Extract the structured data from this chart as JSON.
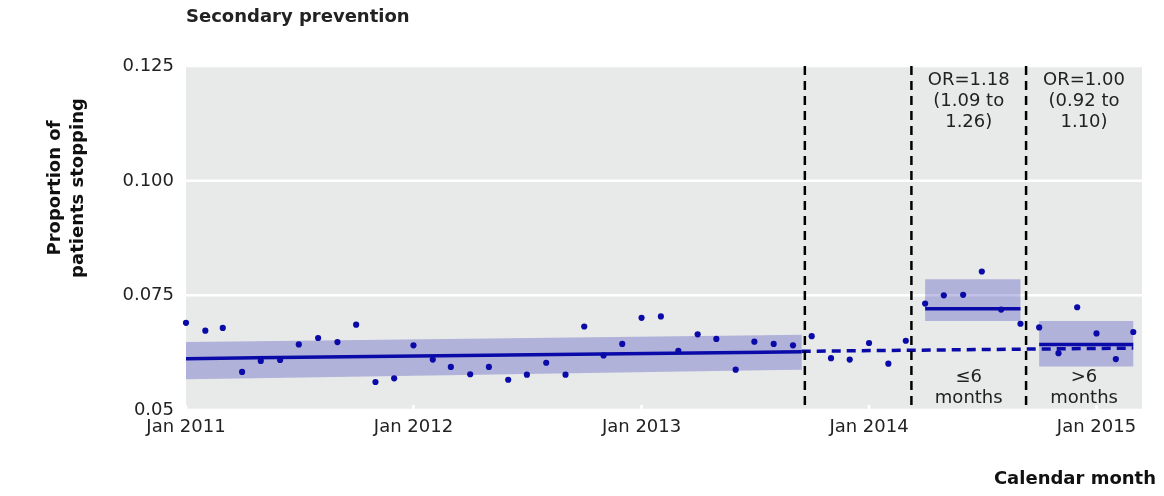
{
  "chart_data": {
    "type": "scatter",
    "title": "Secondary prevention",
    "xlabel": "Calendar month",
    "ylabel": "Proportion of patients stopping",
    "xlim": [
      "2011-01-01",
      "2015-03-15"
    ],
    "xticks": [
      {
        "value": "2011-01",
        "label": "Jan 2011"
      },
      {
        "value": "2012-01",
        "label": "Jan 2012"
      },
      {
        "value": "2013-01",
        "label": "Jan 2013"
      },
      {
        "value": "2014-01",
        "label": "Jan 2014"
      },
      {
        "value": "2015-01",
        "label": "Jan 2015"
      }
    ],
    "ylim": [
      0.05,
      0.125
    ],
    "yticks": [
      0.05,
      0.075,
      {
        "value": 0.1,
        "label": "0.100"
      },
      0.125
    ],
    "grid": "y",
    "series": [
      {
        "type": "line",
        "color": "#0a0aa8",
        "x": [
          "2011-01",
          "2013-09-15"
        ],
        "values": [
          0.0612,
          0.0627
        ],
        "lower": [
          0.0567,
          0.0588
        ],
        "upper": [
          0.0648,
          0.0664
        ],
        "line_style": "solid"
      },
      {
        "type": "line",
        "color": "#0a0aa8",
        "x": [
          "2013-09-15",
          "2015-03"
        ],
        "values": [
          0.0628,
          0.0635
        ],
        "line_style": "dashed"
      },
      {
        "type": "line",
        "color": "#0a0aa8",
        "x": [
          "2014-04",
          "2014-09"
        ],
        "values": [
          0.0721,
          0.0721
        ],
        "lower": [
          0.0694,
          0.0694
        ],
        "upper": [
          0.0785,
          0.0785
        ],
        "line_style": "solid"
      },
      {
        "type": "line",
        "color": "#0a0aa8",
        "x": [
          "2014-10",
          "2015-03"
        ],
        "values": [
          0.0643,
          0.0643
        ],
        "lower": [
          0.0595,
          0.0595
        ],
        "upper": [
          0.0694,
          0.0694
        ],
        "line_style": "solid"
      },
      {
        "marker": "circle",
        "color": "#0a0aa8",
        "x": [
          "2011-01",
          "2011-02",
          "2011-03",
          "2011-04",
          "2011-05",
          "2011-06",
          "2011-07",
          "2011-08",
          "2011-09",
          "2011-10",
          "2011-11",
          "2011-12",
          "2012-01",
          "2012-02",
          "2012-03",
          "2012-04",
          "2012-05",
          "2012-06",
          "2012-07",
          "2012-08",
          "2012-09",
          "2012-10",
          "2012-11",
          "2012-12",
          "2013-01",
          "2013-02",
          "2013-03",
          "2013-04",
          "2013-05",
          "2013-06",
          "2013-07",
          "2013-08",
          "2013-09",
          "2013-10",
          "2013-11",
          "2013-12",
          "2014-01",
          "2014-02",
          "2014-03",
          "2014-04",
          "2014-05",
          "2014-06",
          "2014-07",
          "2014-08",
          "2014-09",
          "2014-10",
          "2014-11",
          "2014-12",
          "2015-01",
          "2015-02",
          "2015-03"
        ],
        "values": [
          0.069,
          0.0673,
          0.0679,
          0.0583,
          0.0607,
          0.0609,
          0.0643,
          0.0657,
          0.0648,
          0.0686,
          0.0561,
          0.0569,
          0.0641,
          0.061,
          0.0594,
          0.0578,
          0.0594,
          0.0566,
          0.0577,
          0.0603,
          0.0577,
          0.0682,
          0.0619,
          0.0644,
          0.0701,
          0.0704,
          0.0629,
          0.0665,
          0.0655,
          0.0588,
          0.0649,
          0.0644,
          0.0641,
          0.0661,
          0.0613,
          0.061,
          0.0646,
          0.0601,
          0.0651,
          0.0732,
          0.075,
          0.0751,
          0.0802,
          0.0719,
          0.0688,
          0.068,
          0.0624,
          0.0724,
          0.0667,
          0.0611,
          0.067
        ]
      }
    ],
    "ref_lines": [
      {
        "axis": "x",
        "value": "2013-09-20",
        "color": "#000000",
        "line_style": "dashed"
      },
      {
        "axis": "x",
        "value": "2014-03-10",
        "color": "#000000",
        "line_style": "dashed"
      },
      {
        "axis": "x",
        "value": "2014-09-10",
        "color": "#000000",
        "line_style": "dashed"
      }
    ],
    "annotations": [
      "OR=1.18 (1.09 to 1.26)",
      "OR=1.00 (0.92 to 1.10)",
      "≤6 months",
      ">6 months"
    ]
  }
}
